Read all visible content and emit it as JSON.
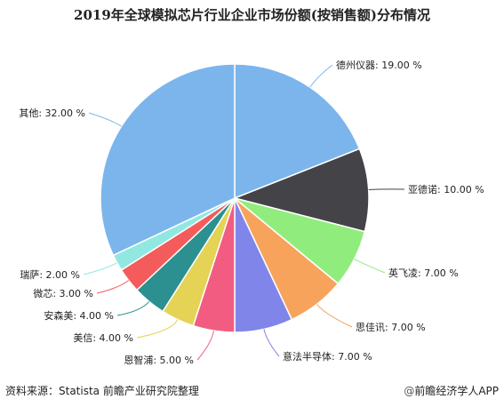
{
  "chart_data": {
    "type": "pie",
    "title": "2019年全球模拟芯片行业企业市场份额(按销售额)分布情况",
    "start_angle_deg": 0,
    "direction": "clockwise",
    "slices": [
      {
        "label": "德州仪器",
        "value": 19.0,
        "display": "德州仪器: 19.00 %",
        "color": "#7cb5ec"
      },
      {
        "label": "亚德诺",
        "value": 10.0,
        "display": "亚德诺: 10.00 %",
        "color": "#434348"
      },
      {
        "label": "英飞凌",
        "value": 7.0,
        "display": "英飞凌: 7.00 %",
        "color": "#90ed7d"
      },
      {
        "label": "思佳讯",
        "value": 7.0,
        "display": "思佳讯: 7.00 %",
        "color": "#f7a35c"
      },
      {
        "label": "意法半导体",
        "value": 7.0,
        "display": "意法半导体: 7.00 %",
        "color": "#8085e9"
      },
      {
        "label": "恩智浦",
        "value": 5.0,
        "display": "恩智浦: 5.00 %",
        "color": "#f15c80"
      },
      {
        "label": "美信",
        "value": 4.0,
        "display": "美信: 4.00 %",
        "color": "#e4d354"
      },
      {
        "label": "安森美",
        "value": 4.0,
        "display": "安森美: 4.00 %",
        "color": "#2b908f"
      },
      {
        "label": "微芯",
        "value": 3.0,
        "display": "微芯: 3.00 %",
        "color": "#f45b5b"
      },
      {
        "label": "瑞萨",
        "value": 2.0,
        "display": "瑞萨: 2.00 %",
        "color": "#91e8e1"
      },
      {
        "label": "其他",
        "value": 32.0,
        "display": "其他: 32.00 %",
        "color": "#7cb5ec"
      }
    ]
  },
  "footer": {
    "source": "资料来源：Statista 前瞻产业研究院整理",
    "brand_icon": "@",
    "brand": "前瞻经济学人APP"
  }
}
